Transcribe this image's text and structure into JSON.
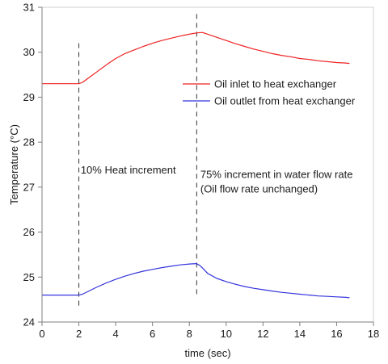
{
  "chart_data": {
    "type": "line",
    "title": "",
    "xlabel": "time (sec)",
    "ylabel": "Temperature (°C)",
    "xlim": [
      0,
      18
    ],
    "ylim": [
      24,
      31
    ],
    "xticks": [
      0,
      2,
      4,
      6,
      8,
      10,
      12,
      14,
      16,
      18
    ],
    "yticks": [
      24,
      25,
      26,
      27,
      28,
      29,
      30,
      31
    ],
    "grid": false,
    "legend_position": "right",
    "series": [
      {
        "name": "Oil inlet to heat exchanger",
        "color": "#ee2222",
        "x": [
          0,
          1,
          2,
          2.2,
          2.6,
          3,
          3.5,
          4,
          4.5,
          5,
          5.5,
          6,
          6.5,
          7,
          7.5,
          8,
          8.4,
          8.7,
          9,
          9.5,
          10,
          10.5,
          11,
          11.5,
          12,
          12.5,
          13,
          13.5,
          14,
          14.5,
          15,
          15.5,
          16,
          16.5,
          16.7
        ],
        "y": [
          29.3,
          29.3,
          29.3,
          29.33,
          29.45,
          29.57,
          29.72,
          29.86,
          29.97,
          30.05,
          30.13,
          30.2,
          30.26,
          30.31,
          30.36,
          30.4,
          30.43,
          30.44,
          30.4,
          30.33,
          30.26,
          30.19,
          30.13,
          30.07,
          30.02,
          29.97,
          29.93,
          29.9,
          29.86,
          29.84,
          29.81,
          29.79,
          29.77,
          29.76,
          29.75
        ]
      },
      {
        "name": "Oil outlet from heat exchanger",
        "color": "#3333dd",
        "x": [
          0,
          1,
          2,
          2.2,
          2.6,
          3,
          3.5,
          4,
          4.5,
          5,
          5.5,
          6,
          6.5,
          7,
          7.5,
          8,
          8.4,
          8.6,
          9,
          9.5,
          10,
          10.5,
          11,
          11.5,
          12,
          12.5,
          13,
          13.5,
          14,
          14.5,
          15,
          15.5,
          16,
          16.5,
          16.7
        ],
        "y": [
          24.6,
          24.6,
          24.6,
          24.62,
          24.7,
          24.78,
          24.87,
          24.95,
          25.02,
          25.08,
          25.13,
          25.17,
          25.21,
          25.24,
          25.27,
          25.29,
          25.3,
          25.25,
          25.08,
          24.97,
          24.9,
          24.84,
          24.79,
          24.75,
          24.72,
          24.69,
          24.66,
          24.64,
          24.62,
          24.6,
          24.58,
          24.57,
          24.56,
          24.55,
          24.54
        ]
      }
    ],
    "event_lines": [
      {
        "x": 2,
        "y_from": 24.3,
        "y_to": 30.2
      },
      {
        "x": 8.4,
        "y_from": 24.6,
        "y_to": 30.85
      }
    ],
    "annotations": [
      {
        "lines": [
          "10% Heat increment"
        ],
        "x": 2.1,
        "y": 27.3
      },
      {
        "lines": [
          "75% increment in water flow rate",
          "(Oil flow rate unchanged)"
        ],
        "x": 8.6,
        "y": 27.2
      }
    ]
  }
}
